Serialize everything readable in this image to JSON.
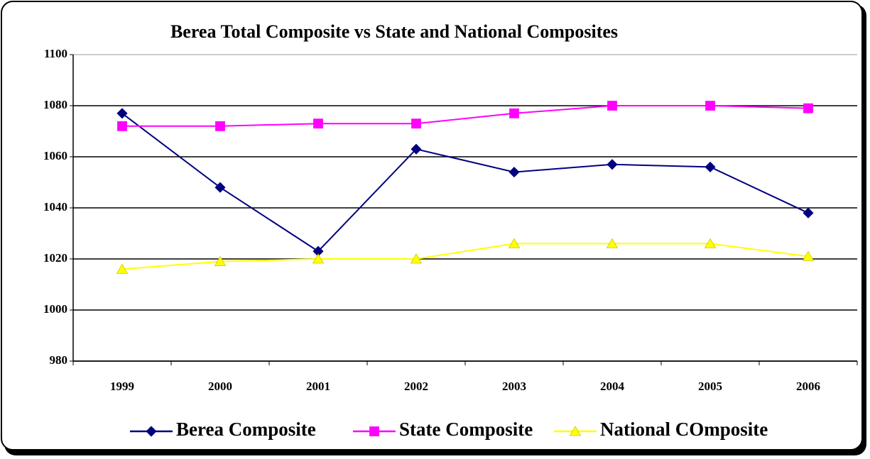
{
  "chart_data": {
    "type": "line",
    "title": "Berea Total Composite vs State and National Composites",
    "categories": [
      "1999",
      "2000",
      "2001",
      "2002",
      "2003",
      "2004",
      "2005",
      "2006"
    ],
    "series": [
      {
        "name": "Berea Composite",
        "color": "#000080",
        "marker": "diamond",
        "values": [
          1077,
          1048,
          1023,
          1063,
          1054,
          1057,
          1056,
          1038
        ]
      },
      {
        "name": "State Composite",
        "color": "#ff00ff",
        "marker": "square",
        "values": [
          1072,
          1072,
          1073,
          1073,
          1077,
          1080,
          1080,
          1079
        ]
      },
      {
        "name": "National COmposite",
        "color": "#ffff00",
        "marker": "triangle",
        "values": [
          1016,
          1019,
          1020,
          1020,
          1026,
          1026,
          1026,
          1021
        ]
      }
    ],
    "ylim": [
      980,
      1100
    ],
    "yticks": [
      980,
      1000,
      1020,
      1040,
      1060,
      1080,
      1100
    ],
    "grid": true,
    "legend": "bottom"
  }
}
